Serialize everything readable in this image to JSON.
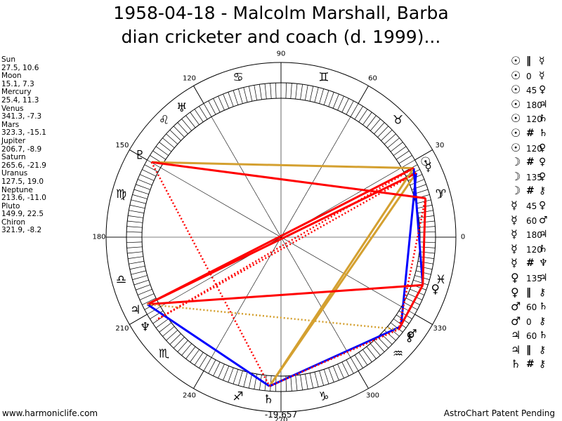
{
  "title": {
    "line1": "1958-04-18 - Malcolm Marshall, Barba",
    "line2": "dian cricketer and coach (d. 1999)..."
  },
  "planets": [
    {
      "name": "Sun",
      "coords": "27.5, 10.6"
    },
    {
      "name": "Moon",
      "coords": "15.1, 7.3"
    },
    {
      "name": "Mercury",
      "coords": "25.4, 11.3"
    },
    {
      "name": "Venus",
      "coords": "341.3, -7.3"
    },
    {
      "name": "Mars",
      "coords": "323.3, -15.1"
    },
    {
      "name": "Jupiter",
      "coords": "206.7, -8.9"
    },
    {
      "name": "Saturn",
      "coords": "265.6, -21.9"
    },
    {
      "name": "Uranus",
      "coords": "127.5, 19.0"
    },
    {
      "name": "Neptune",
      "coords": "213.6, -11.0"
    },
    {
      "name": "Pluto",
      "coords": "149.9, 22.5"
    },
    {
      "name": "Chiron",
      "coords": "321.9, -8.2"
    }
  ],
  "aspects": [
    {
      "p1": "☉",
      "aspect": "‖",
      "p2": "☿"
    },
    {
      "p1": "☉",
      "aspect": "0",
      "p2": "☿"
    },
    {
      "p1": "☉",
      "aspect": "45",
      "p2": "♀"
    },
    {
      "p1": "☉",
      "aspect": "180",
      "p2": "♃"
    },
    {
      "p1": "☉",
      "aspect": "120",
      "p2": "♄"
    },
    {
      "p1": "☉",
      "aspect": "#",
      "p2": "♄"
    },
    {
      "p1": "☉",
      "aspect": "120",
      "p2": "♀"
    },
    {
      "p1": "☽",
      "aspect": "#",
      "p2": "♀"
    },
    {
      "p1": "☽",
      "aspect": "135",
      "p2": "♀"
    },
    {
      "p1": "☽",
      "aspect": "#",
      "p2": "⚷"
    },
    {
      "p1": "☿",
      "aspect": "45",
      "p2": "♀"
    },
    {
      "p1": "☿",
      "aspect": "60",
      "p2": "♂"
    },
    {
      "p1": "☿",
      "aspect": "180",
      "p2": "♃"
    },
    {
      "p1": "☿",
      "aspect": "120",
      "p2": "♄"
    },
    {
      "p1": "☿",
      "aspect": "#",
      "p2": "♆"
    },
    {
      "p1": "♀",
      "aspect": "135",
      "p2": "♃"
    },
    {
      "p1": "♀",
      "aspect": "‖",
      "p2": "⚷"
    },
    {
      "p1": "♂",
      "aspect": "60",
      "p2": "♄"
    },
    {
      "p1": "♂",
      "aspect": "0",
      "p2": "⚷"
    },
    {
      "p1": "♃",
      "aspect": "60",
      "p2": "♄"
    },
    {
      "p1": "♃",
      "aspect": "‖",
      "p2": "⚷"
    },
    {
      "p1": "♄",
      "aspect": "#",
      "p2": "⚷"
    }
  ],
  "wheel": {
    "degree_labels": [
      "0",
      "30",
      "60",
      "90",
      "120",
      "150",
      "180",
      "210",
      "240",
      "270",
      "300",
      "330"
    ],
    "zodiac_signs": [
      "♈",
      "♉",
      "♊",
      "♋",
      "♌",
      "♍",
      "♎",
      "♏",
      "♐",
      "♑",
      "♒",
      "♓"
    ],
    "planet_glyphs": [
      {
        "glyph": "☉",
        "lon": 27.5
      },
      {
        "glyph": "☽",
        "lon": 15.1
      },
      {
        "glyph": "☿",
        "lon": 25.4
      },
      {
        "glyph": "♀",
        "lon": 341.3
      },
      {
        "glyph": "♂",
        "lon": 323.3
      },
      {
        "glyph": "♃",
        "lon": 206.7
      },
      {
        "glyph": "♄",
        "lon": 265.6
      },
      {
        "glyph": "♅",
        "lon": 127.5
      },
      {
        "glyph": "♆",
        "lon": 213.6
      },
      {
        "glyph": "♇",
        "lon": 149.9
      },
      {
        "glyph": "⚷",
        "lon": 321.9
      }
    ],
    "bottom_label": "-19,657",
    "colors": {
      "red": "#ff0000",
      "gold": "#d4a030",
      "blue": "#0000ff",
      "ring": "#000000"
    }
  },
  "aspect_lines": [
    {
      "from": 27.5,
      "to": 149.9,
      "color": "gold",
      "style": "solid"
    },
    {
      "from": 27.5,
      "to": 206.7,
      "color": "red",
      "style": "solid"
    },
    {
      "from": 25.4,
      "to": 206.7,
      "color": "red",
      "style": "solid"
    },
    {
      "from": 27.5,
      "to": 265.6,
      "color": "gold",
      "style": "solid"
    },
    {
      "from": 25.4,
      "to": 265.6,
      "color": "gold",
      "style": "solid"
    },
    {
      "from": 27.5,
      "to": 341.3,
      "color": "blue",
      "style": "solid"
    },
    {
      "from": 25.4,
      "to": 323.3,
      "color": "blue",
      "style": "solid"
    },
    {
      "from": 15.1,
      "to": 341.3,
      "color": "red",
      "style": "solid"
    },
    {
      "from": 149.9,
      "to": 15.1,
      "color": "red",
      "style": "solid"
    },
    {
      "from": 206.7,
      "to": 341.3,
      "color": "red",
      "style": "solid"
    },
    {
      "from": 206.7,
      "to": 265.6,
      "color": "blue",
      "style": "solid"
    },
    {
      "from": 265.6,
      "to": 323.3,
      "color": "blue",
      "style": "solid"
    },
    {
      "from": 149.9,
      "to": 265.6,
      "color": "red",
      "style": "dotted"
    },
    {
      "from": 27.5,
      "to": 213.6,
      "color": "red",
      "style": "dotted"
    },
    {
      "from": 25.4,
      "to": 213.6,
      "color": "red",
      "style": "dotted"
    },
    {
      "from": 15.1,
      "to": 149.9,
      "color": "red",
      "style": "dotted"
    },
    {
      "from": 15.1,
      "to": 321.9,
      "color": "red",
      "style": "dotted"
    },
    {
      "from": 206.7,
      "to": 321.9,
      "color": "gold",
      "style": "dotted"
    },
    {
      "from": 265.6,
      "to": 321.9,
      "color": "red",
      "style": "dotted"
    },
    {
      "from": 341.3,
      "to": 321.9,
      "color": "red",
      "style": "solid"
    }
  ],
  "footer": {
    "left": "www.harmoniclife.com",
    "right": "AstroChart Patent Pending"
  }
}
